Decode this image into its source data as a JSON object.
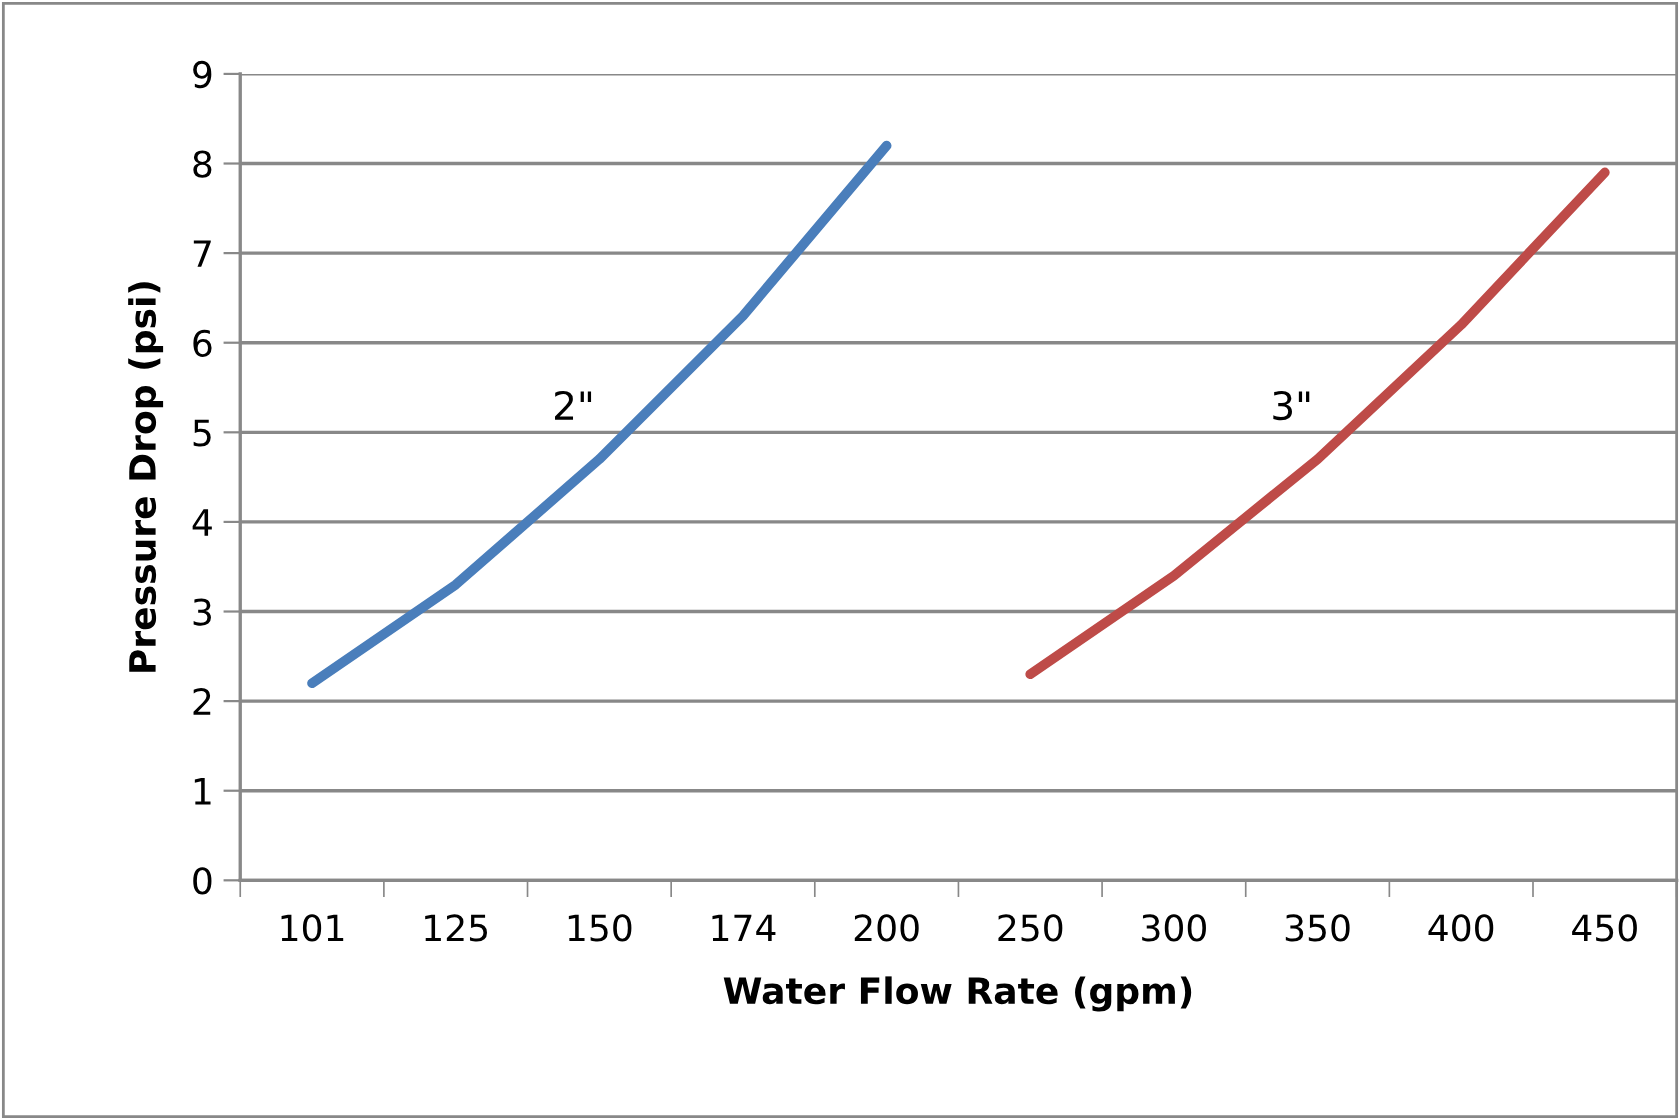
{
  "chart_data": {
    "type": "line",
    "xlabel": "Water Flow Rate (gpm)",
    "ylabel": "Pressure Drop (psi)",
    "categories": [
      "101",
      "125",
      "150",
      "174",
      "200",
      "250",
      "300",
      "350",
      "400",
      "450"
    ],
    "series": [
      {
        "name": "2\"",
        "color": "#4a7ebb",
        "values": [
          2.2,
          3.3,
          4.7,
          6.3,
          8.2,
          null,
          null,
          null,
          null,
          null
        ]
      },
      {
        "name": "3\"",
        "color": "#be4b48",
        "values": [
          null,
          null,
          null,
          null,
          null,
          2.3,
          3.4,
          4.7,
          6.2,
          7.9
        ]
      }
    ],
    "ylim": [
      0,
      9
    ],
    "yticks": [
      0,
      1,
      2,
      3,
      4,
      5,
      6,
      7,
      8,
      9
    ],
    "grid": "y",
    "legend": false,
    "marker": "none",
    "line_style": "solid"
  }
}
